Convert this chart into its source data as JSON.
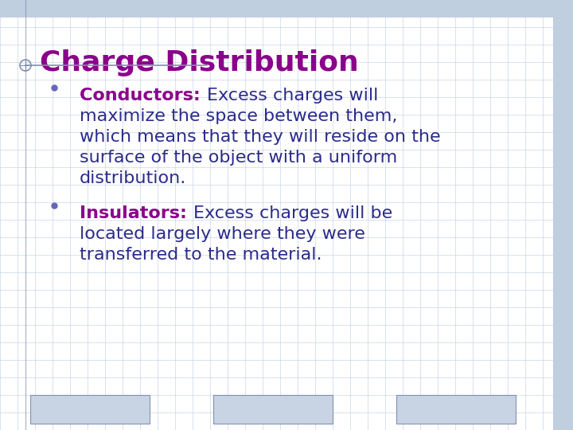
{
  "title": "Charge Distribution",
  "title_color": "#8B008B",
  "title_fontsize": 26,
  "background_color": "#FFFFFF",
  "grid_color": "#C0CFDF",
  "bullet1_label": "Conductors: ",
  "bullet1_label_color": "#8B008B",
  "bullet1_lines": [
    [
      "Conductors: ",
      "Excess charges will"
    ],
    [
      "maximize the space between them,"
    ],
    [
      "which means that they will reside on the"
    ],
    [
      "surface of the object with a uniform"
    ],
    [
      "distribution."
    ]
  ],
  "bullet2_label": "Insulators: ",
  "bullet2_label_color": "#8B008B",
  "bullet2_lines": [
    [
      "Insulators: ",
      "Excess charges will be"
    ],
    [
      "located largely where they were"
    ],
    [
      "transferred to the material."
    ]
  ],
  "bullet_text_color": "#2B2B8B",
  "bullet_dot_color": "#6666BB",
  "body_fontsize": 16,
  "underline_color": "#8090B0",
  "border_color": "#8090B0",
  "top_bar_color": "#C0CFDF",
  "right_bar_color": "#C0CFDF",
  "footer_box_color": "#C8D4E4",
  "figsize": [
    7.2,
    5.4
  ],
  "dpi": 100
}
